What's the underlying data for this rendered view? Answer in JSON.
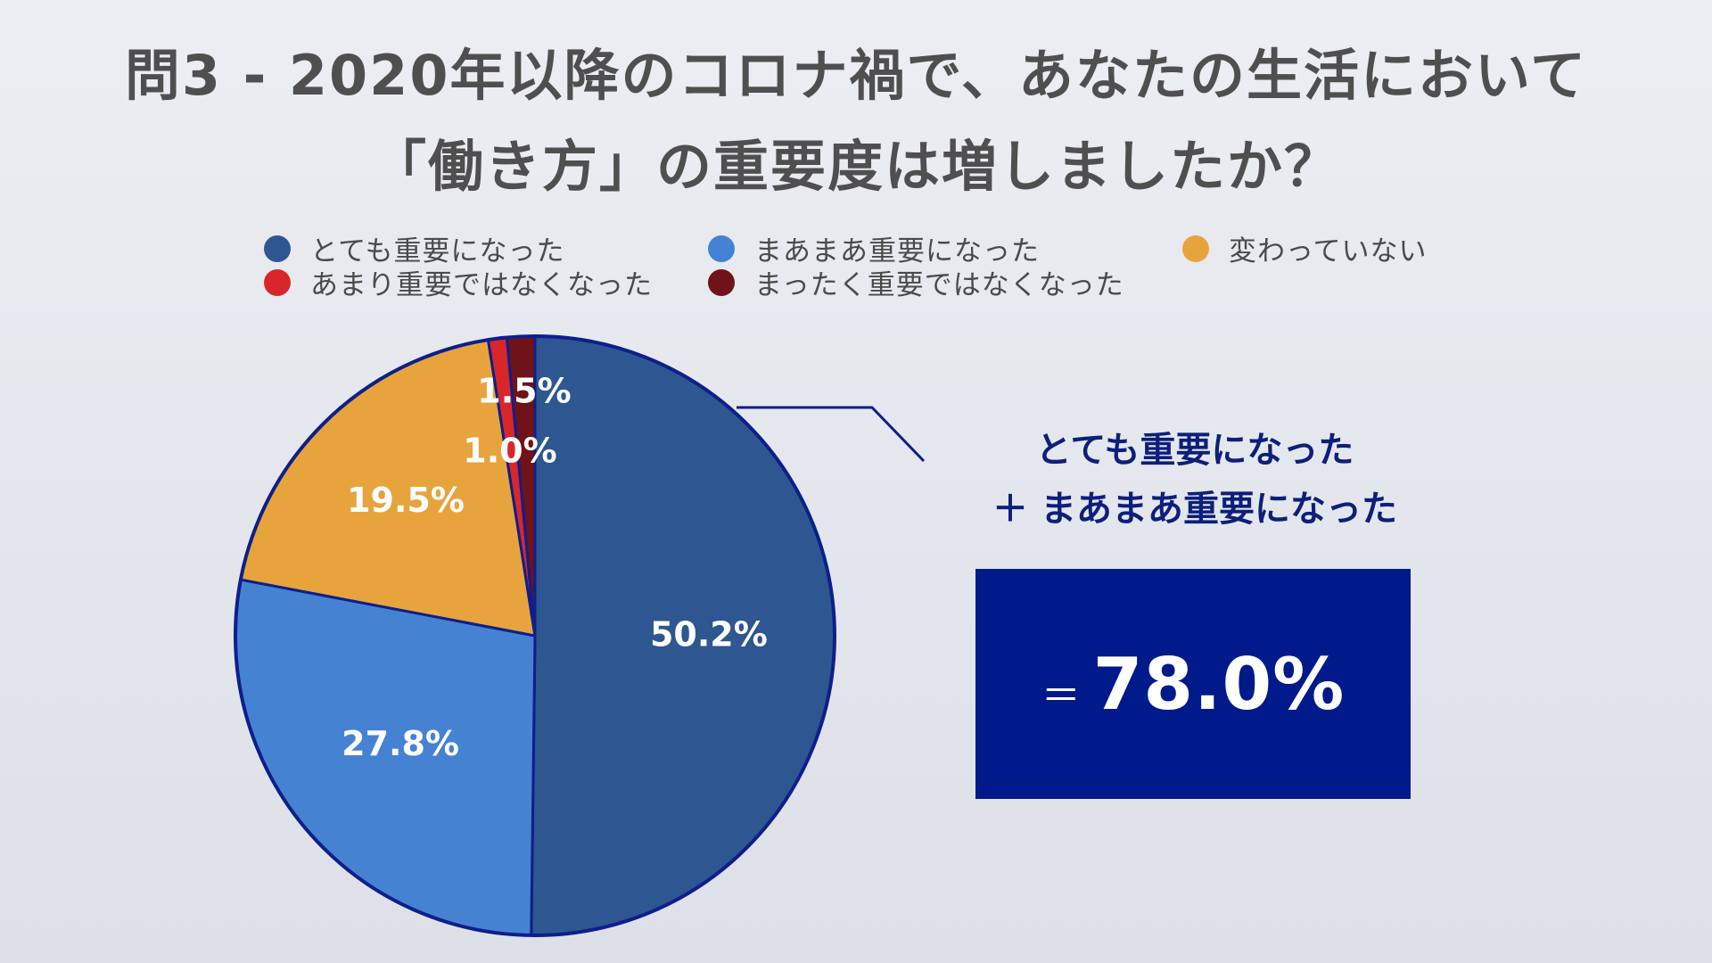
{
  "title": {
    "line1": "問3 - 2020年以降のコロナ禍で、あなたの生活において",
    "line2": "「働き方」の重要度は増しましたか？"
  },
  "legend": {
    "items": [
      {
        "label": "とても重要になった",
        "color": "#2e5690"
      },
      {
        "label": "まあまあ重要になった",
        "color": "#4682d2"
      },
      {
        "label": "変わっていない",
        "color": "#e8a43c"
      },
      {
        "label": "あまり重要ではなくなった",
        "color": "#d8262a"
      },
      {
        "label": "まったく重要ではなくなった",
        "color": "#6f1219"
      }
    ]
  },
  "chart_data": {
    "type": "pie",
    "categories": [
      "とても重要になった",
      "まあまあ重要になった",
      "変わっていない",
      "あまり重要ではなくなった",
      "まったく重要ではなくなった"
    ],
    "values": [
      50.2,
      27.8,
      19.5,
      1.0,
      1.5
    ],
    "labels": [
      "50.2%",
      "27.8%",
      "19.5%",
      "1.0%",
      "1.5%"
    ],
    "colors": [
      "#2e5690",
      "#4682d2",
      "#e8a43c",
      "#d8262a",
      "#6f1219"
    ],
    "outline_color": "#0d1f8c",
    "start": "12 o'clock",
    "direction": "clockwise"
  },
  "summary": {
    "caption_line1": "とても重要になった",
    "caption_line2": "＋ まあまあ重要になった",
    "equals": "＝",
    "value": "78.0%",
    "box_color": "#001a8c"
  }
}
